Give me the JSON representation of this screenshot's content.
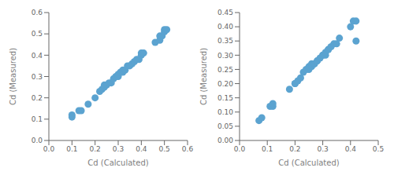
{
  "chart_data": [
    {
      "type": "scatter",
      "xlabel": "Cd (Calculated)",
      "ylabel": "Cd (Measured)",
      "xlim": [
        0,
        0.6
      ],
      "ylim": [
        0,
        0.6
      ],
      "xticks": [
        {
          "value": 0,
          "label": "0.0"
        },
        0.1,
        0.2,
        0.3,
        0.4,
        0.5,
        0.6
      ],
      "yticks": [
        {
          "value": 0,
          "label": "0.0"
        },
        0.1,
        0.2,
        0.3,
        0.4,
        0.5,
        0.6
      ],
      "x": [
        0.1,
        0.1,
        0.13,
        0.14,
        0.17,
        0.2,
        0.22,
        0.23,
        0.24,
        0.24,
        0.25,
        0.26,
        0.27,
        0.28,
        0.29,
        0.3,
        0.3,
        0.31,
        0.32,
        0.32,
        0.33,
        0.34,
        0.35,
        0.36,
        0.37,
        0.38,
        0.39,
        0.4,
        0.4,
        0.41,
        0.46,
        0.48,
        0.48,
        0.49,
        0.5,
        0.5,
        0.51
      ],
      "values": [
        0.11,
        0.12,
        0.14,
        0.14,
        0.17,
        0.2,
        0.23,
        0.24,
        0.25,
        0.26,
        0.26,
        0.27,
        0.27,
        0.29,
        0.3,
        0.3,
        0.31,
        0.32,
        0.32,
        0.33,
        0.33,
        0.35,
        0.35,
        0.36,
        0.37,
        0.38,
        0.38,
        0.4,
        0.41,
        0.41,
        0.46,
        0.47,
        0.49,
        0.49,
        0.51,
        0.52,
        0.52
      ],
      "color": "#5ba3d0",
      "grid": false
    },
    {
      "type": "scatter",
      "xlabel": "Cd (Calculated)",
      "ylabel": "Cd (Measured)",
      "xlim": [
        0,
        0.5
      ],
      "ylim": [
        0,
        0.45
      ],
      "xticks": [
        {
          "value": 0,
          "label": "0.0"
        },
        0.1,
        0.2,
        0.3,
        0.4,
        0.5
      ],
      "yticks": [
        {
          "value": 0,
          "label": "0.00"
        },
        0.05,
        {
          "value": 0.1,
          "label": "0.10"
        },
        0.15,
        {
          "value": 0.2,
          "label": "0.20"
        },
        0.25,
        {
          "value": 0.3,
          "label": "0.30"
        },
        0.35,
        {
          "value": 0.4,
          "label": "0.40"
        },
        0.45
      ],
      "x": [
        0.07,
        0.08,
        0.11,
        0.12,
        0.12,
        0.18,
        0.2,
        0.2,
        0.21,
        0.22,
        0.23,
        0.24,
        0.25,
        0.25,
        0.26,
        0.26,
        0.27,
        0.27,
        0.28,
        0.28,
        0.29,
        0.3,
        0.3,
        0.31,
        0.31,
        0.32,
        0.32,
        0.33,
        0.34,
        0.35,
        0.36,
        0.4,
        0.41,
        0.42,
        0.42
      ],
      "values": [
        0.07,
        0.08,
        0.12,
        0.12,
        0.13,
        0.18,
        0.2,
        0.2,
        0.21,
        0.22,
        0.24,
        0.25,
        0.25,
        0.26,
        0.26,
        0.27,
        0.27,
        0.27,
        0.28,
        0.28,
        0.29,
        0.3,
        0.3,
        0.3,
        0.31,
        0.32,
        0.32,
        0.33,
        0.34,
        0.34,
        0.36,
        0.4,
        0.42,
        0.42,
        0.35
      ],
      "color": "#5ba3d0",
      "grid": false
    }
  ]
}
